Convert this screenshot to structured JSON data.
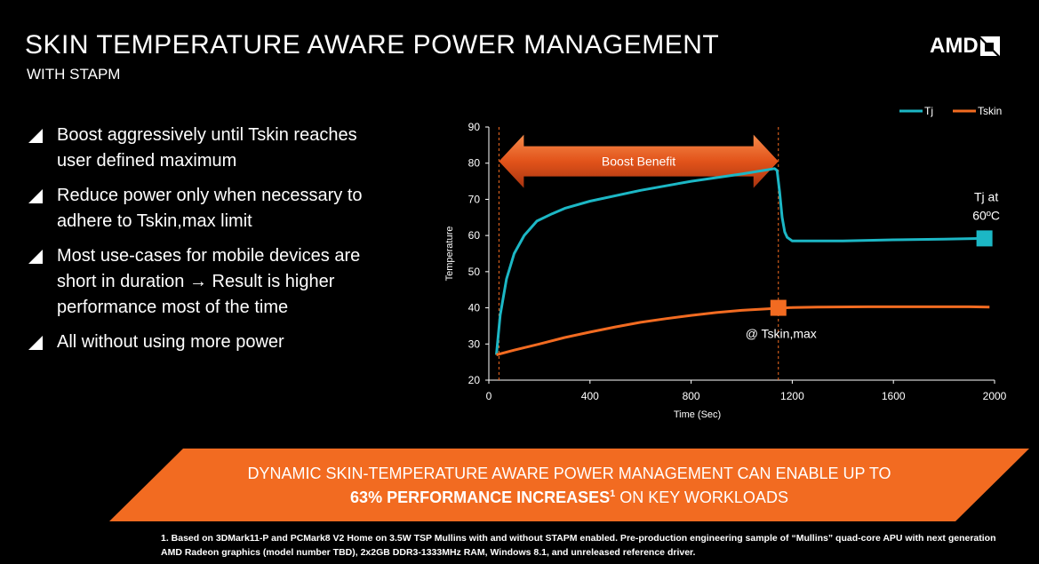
{
  "header": {
    "title": "SKIN TEMPERATURE AWARE POWER MANAGEMENT",
    "subtitle": "WITH STAPM",
    "logo_text": "AMD"
  },
  "bullets": [
    "Boost aggressively until Tskin reaches user defined maximum",
    "Reduce power only when necessary to adhere to Tskin,max limit",
    "Most use-cases for mobile devices are short in duration → Result is higher performance most of the time",
    "All without using more power"
  ],
  "chart_data": {
    "type": "line",
    "xlabel": "Time (Sec)",
    "ylabel": "Temperature",
    "xlim": [
      0,
      2000
    ],
    "ylim": [
      20,
      90
    ],
    "x_ticks": [
      0,
      400,
      800,
      1200,
      1600,
      2000
    ],
    "y_ticks": [
      20,
      30,
      40,
      50,
      60,
      70,
      80,
      90
    ],
    "grid": false,
    "legend_position": "top-right",
    "series": [
      {
        "name": "Tj",
        "color": "#1cb7c5",
        "x": [
          30,
          45,
          70,
          100,
          140,
          190,
          250,
          300,
          400,
          600,
          800,
          1000,
          1130,
          1140,
          1150,
          1160,
          1170,
          1180,
          1200,
          1250,
          1400,
          1600,
          1800,
          1960
        ],
        "y": [
          27,
          38,
          48,
          55,
          60,
          64,
          66,
          67.5,
          69.5,
          72.5,
          75,
          77,
          78.5,
          78,
          72,
          65,
          61,
          59.5,
          58.5,
          58.5,
          58.5,
          58.8,
          59,
          59.2
        ]
      },
      {
        "name": "Tskin",
        "color": "#f26b21",
        "x": [
          30,
          100,
          200,
          300,
          400,
          500,
          600,
          700,
          800,
          900,
          1000,
          1100,
          1145,
          1200,
          1300,
          1500,
          1700,
          1900,
          1980
        ],
        "y": [
          27,
          28.3,
          30,
          31.8,
          33.3,
          34.7,
          36,
          37,
          37.9,
          38.7,
          39.3,
          39.7,
          39.9,
          40.1,
          40.2,
          40.3,
          40.3,
          40.3,
          40.2
        ]
      }
    ],
    "markers": [
      {
        "series": "Tj",
        "x": 1960,
        "y": 59.2,
        "label_lines": [
          "Tj at",
          "60ºC"
        ]
      },
      {
        "series": "Tskin",
        "x": 1145,
        "y": 40,
        "label_lines": [
          "@ Tskin,max"
        ]
      }
    ],
    "annotations": {
      "boost_label": "Boost Benefit",
      "boost_range": [
        40,
        1145
      ],
      "boost_y": 80.5,
      "vlines": [
        40,
        1145
      ]
    }
  },
  "banner": {
    "line1": "DYNAMIC SKIN-TEMPERATURE AWARE POWER MANAGEMENT CAN ENABLE UP TO",
    "line2_strong": "63% PERFORMANCE INCREASES",
    "line2_sup": "1",
    "line2_rest": " ON KEY WORKLOADS",
    "color": "#f26b21"
  },
  "footnote": "1. Based on 3DMark11-P and PCMark8 V2 Home on 3.5W TSP Mullins with and without STAPM enabled. Pre-production engineering sample of “Mullins” quad-core APU with next generation AMD Radeon graphics (model number TBD), 2x2GB DDR3-1333MHz RAM, Windows 8.1, and unreleased reference driver."
}
